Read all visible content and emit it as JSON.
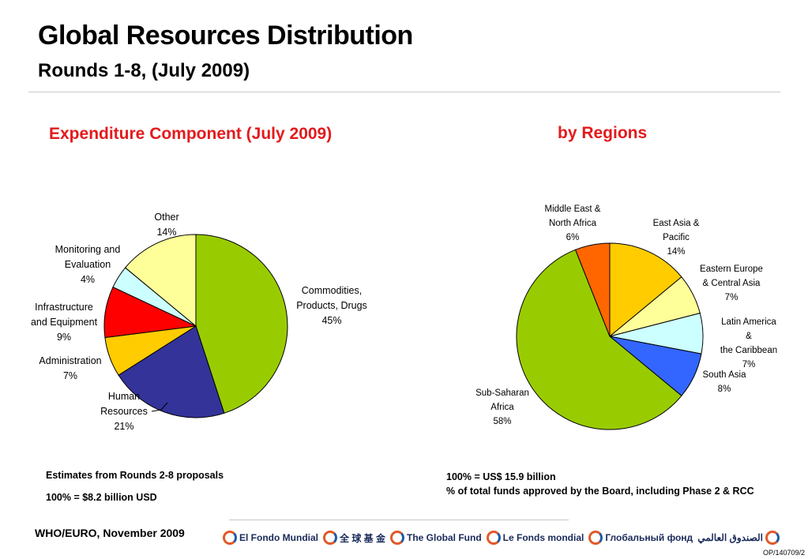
{
  "header": {
    "title": "Global Resources Distribution",
    "subtitle": "Rounds 1-8, (July 2009)"
  },
  "chart_data": [
    {
      "type": "pie",
      "title": "Expenditure Component (July 2009)",
      "slices": [
        {
          "label": "Commodities,\nProducts, Drugs",
          "value": 45,
          "display": "45%",
          "color": "#99cc00"
        },
        {
          "label": "Human\nResources",
          "value": 21,
          "display": "21%",
          "color": "#333399"
        },
        {
          "label": "Administration",
          "value": 7,
          "display": "7%",
          "color": "#ffcc00"
        },
        {
          "label": "Infrastructure\nand Equipment",
          "value": 9,
          "display": "9%",
          "color": "#ff0000"
        },
        {
          "label": "Monitoring and\nEvaluation",
          "value": 4,
          "display": "4%",
          "color": "#ccffff"
        },
        {
          "label": "Other",
          "value": 14,
          "display": "14%",
          "color": "#ffff99"
        }
      ],
      "notes": [
        "Estimates from Rounds 2-8 proposals",
        "100% = $8.2 billion USD"
      ]
    },
    {
      "type": "pie",
      "title": "by Regions",
      "slices": [
        {
          "label": "East Asia  &\nPacific",
          "value": 14,
          "display": "14%",
          "color": "#ffcc00"
        },
        {
          "label": "Eastern Europe\n& Central Asia",
          "value": 7,
          "display": "7%",
          "color": "#ffff99"
        },
        {
          "label": "Latin America &\nthe Caribbean",
          "value": 7,
          "display": "7%",
          "color": "#ccffff"
        },
        {
          "label": "South Asia",
          "value": 8,
          "display": "8%",
          "color": "#3366ff"
        },
        {
          "label": "Sub-Saharan\nAfrica",
          "value": 58,
          "display": "58%",
          "color": "#99cc00"
        },
        {
          "label": "Middle East &\nNorth Africa",
          "value": 6,
          "display": "6%",
          "color": "#ff6600"
        }
      ],
      "notes": [
        "100% = US$ 15.9 billion",
        "% of total funds approved by the Board, including Phase 2 & RCC"
      ]
    }
  ],
  "footer": {
    "source": "WHO/EURO, November 2009",
    "ref": "OP/140709/2",
    "logos": [
      "El Fondo Mundial",
      "全 球 基 金",
      "The Global Fund",
      "Le Fonds mondial",
      "Глобальный фонд",
      "الصندوق العالمي"
    ]
  }
}
